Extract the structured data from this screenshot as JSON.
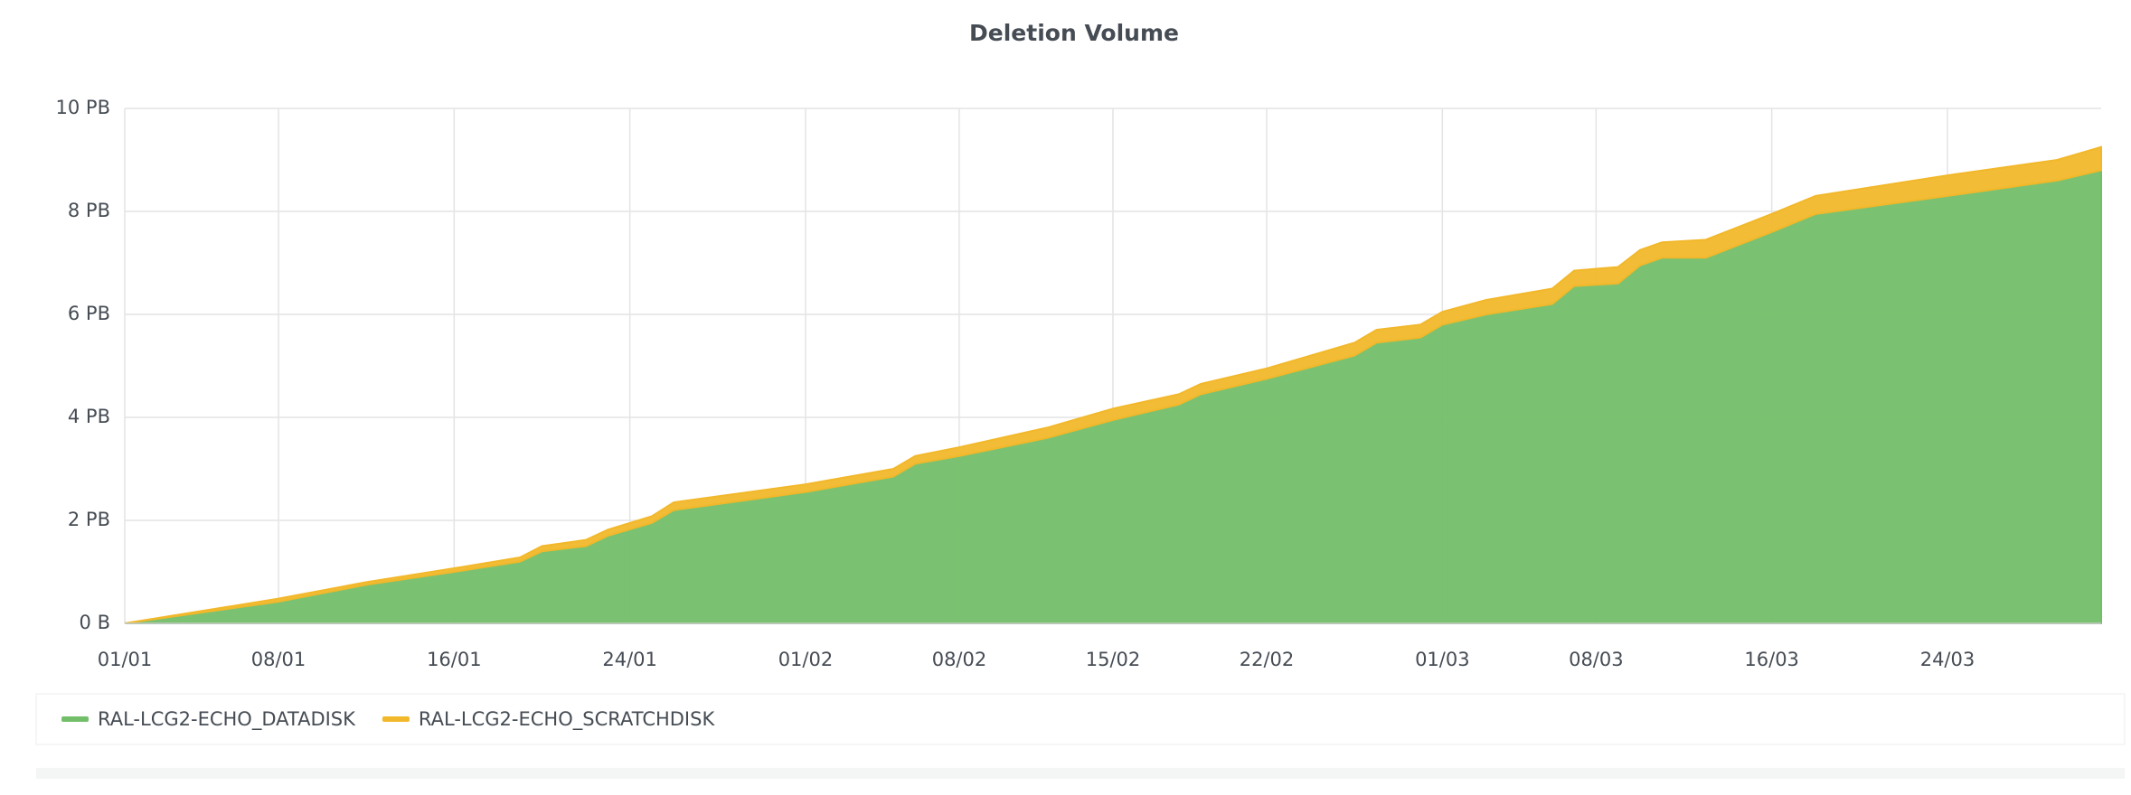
{
  "chart_data": {
    "type": "stacked_area",
    "title": "Deletion Volume",
    "x": [
      "01/01",
      "08/01",
      "12/01",
      "16/01",
      "19/01",
      "20/01",
      "22/01",
      "23/01",
      "25/01",
      "26/01",
      "01/02",
      "05/02",
      "06/02",
      "08/02",
      "12/02",
      "15/02",
      "18/02",
      "19/02",
      "22/02",
      "26/02",
      "27/02",
      "29/02",
      "01/03",
      "03/03",
      "06/03",
      "07/03",
      "09/03",
      "10/03",
      "11/03",
      "13/03",
      "16/03",
      "18/03",
      "24/03",
      "29/03",
      "31/03"
    ],
    "series": [
      {
        "name": "RAL-LCG2-ECHO_DATADISK",
        "color": "#73bf69",
        "values": [
          0,
          0.42,
          0.75,
          1.0,
          1.2,
          1.4,
          1.5,
          1.7,
          1.95,
          2.2,
          2.55,
          2.85,
          3.1,
          3.25,
          3.6,
          3.95,
          4.25,
          4.45,
          4.75,
          5.2,
          5.45,
          5.55,
          5.8,
          6.0,
          6.2,
          6.55,
          6.6,
          6.95,
          7.1,
          7.1,
          7.6,
          7.95,
          8.3,
          8.6,
          8.8
        ]
      },
      {
        "name": "RAL-LCG2-ECHO_SCRATCHDISK",
        "color": "#f2b82b",
        "values": [
          0,
          0.06,
          0.05,
          0.07,
          0.08,
          0.1,
          0.12,
          0.12,
          0.13,
          0.15,
          0.15,
          0.15,
          0.15,
          0.17,
          0.2,
          0.22,
          0.2,
          0.2,
          0.2,
          0.25,
          0.25,
          0.25,
          0.25,
          0.28,
          0.3,
          0.3,
          0.32,
          0.3,
          0.3,
          0.35,
          0.35,
          0.35,
          0.4,
          0.4,
          0.45
        ]
      }
    ],
    "xlim": [
      "01/01",
      "31/03"
    ],
    "xticks": [
      "01/01",
      "08/01",
      "16/01",
      "24/01",
      "01/02",
      "08/02",
      "15/02",
      "22/02",
      "01/03",
      "08/03",
      "16/03",
      "24/03"
    ],
    "ylim": [
      0,
      10
    ],
    "yticks": [
      {
        "value": 0,
        "label": "0 B"
      },
      {
        "value": 2,
        "label": "2 PB"
      },
      {
        "value": 4,
        "label": "4 PB"
      },
      {
        "value": 6,
        "label": "6 PB"
      },
      {
        "value": 8,
        "label": "8 PB"
      },
      {
        "value": 10,
        "label": "10 PB"
      }
    ],
    "grid": true,
    "legend": "bottom"
  }
}
